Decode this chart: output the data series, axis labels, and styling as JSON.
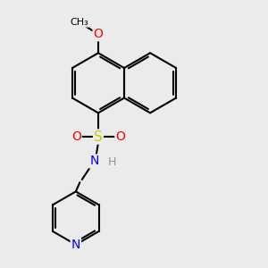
{
  "bg_color": "#ebebeb",
  "bond_color": "#000000",
  "bond_width": 1.5,
  "dbo": 0.07,
  "atom_colors": {
    "O": "#ff0000",
    "S": "#cccc00",
    "N": "#0000ff",
    "H": "#7f9f9f",
    "C": "#000000"
  },
  "fs": 10,
  "fs_small": 8
}
